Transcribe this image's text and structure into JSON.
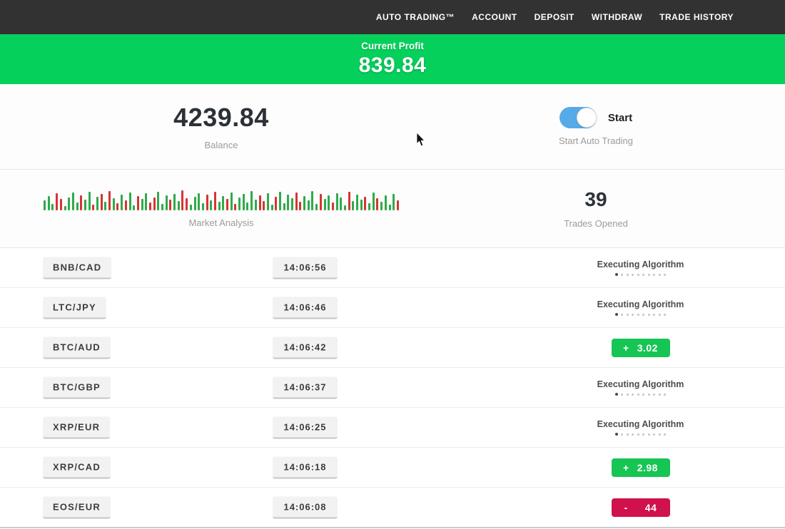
{
  "nav": {
    "items": [
      "AUTO TRADING™",
      "ACCOUNT",
      "DEPOSIT",
      "WITHDRAW",
      "TRADE HISTORY"
    ]
  },
  "profit_banner": {
    "label": "Current Profit",
    "value": "839.84"
  },
  "stats": {
    "balance": {
      "value": "4239.84",
      "label": "Balance"
    },
    "auto_trading": {
      "toggle_label": "Start",
      "label": "Start Auto Trading",
      "state": "on"
    },
    "market_analysis": {
      "label": "Market Analysis"
    },
    "trades_opened": {
      "value": "39",
      "label": "Trades Opened"
    }
  },
  "chart_data": {
    "type": "bar",
    "title": "Market Analysis",
    "note": "decorative green/red tick bars, heights in px, c: g=green r=red",
    "bars": [
      [
        14,
        "g"
      ],
      [
        20,
        "g"
      ],
      [
        9,
        "g"
      ],
      [
        24,
        "r"
      ],
      [
        16,
        "r"
      ],
      [
        6,
        "g"
      ],
      [
        18,
        "g"
      ],
      [
        25,
        "g"
      ],
      [
        11,
        "g"
      ],
      [
        21,
        "r"
      ],
      [
        15,
        "g"
      ],
      [
        26,
        "g"
      ],
      [
        8,
        "r"
      ],
      [
        19,
        "g"
      ],
      [
        23,
        "r"
      ],
      [
        12,
        "g"
      ],
      [
        27,
        "r"
      ],
      [
        17,
        "g"
      ],
      [
        10,
        "r"
      ],
      [
        22,
        "g"
      ],
      [
        14,
        "r"
      ],
      [
        25,
        "g"
      ],
      [
        7,
        "g"
      ],
      [
        20,
        "r"
      ],
      [
        16,
        "g"
      ],
      [
        24,
        "g"
      ],
      [
        11,
        "r"
      ],
      [
        18,
        "r"
      ],
      [
        26,
        "g"
      ],
      [
        9,
        "g"
      ],
      [
        21,
        "g"
      ],
      [
        15,
        "r"
      ],
      [
        23,
        "g"
      ],
      [
        13,
        "g"
      ],
      [
        28,
        "r"
      ],
      [
        17,
        "r"
      ],
      [
        8,
        "g"
      ],
      [
        19,
        "g"
      ],
      [
        24,
        "g"
      ],
      [
        10,
        "g"
      ],
      [
        22,
        "r"
      ],
      [
        14,
        "g"
      ],
      [
        26,
        "r"
      ],
      [
        12,
        "g"
      ],
      [
        20,
        "g"
      ],
      [
        16,
        "r"
      ],
      [
        25,
        "g"
      ],
      [
        9,
        "r"
      ],
      [
        18,
        "g"
      ],
      [
        23,
        "g"
      ],
      [
        11,
        "g"
      ],
      [
        27,
        "g"
      ],
      [
        15,
        "g"
      ],
      [
        21,
        "r"
      ],
      [
        13,
        "r"
      ],
      [
        24,
        "g"
      ],
      [
        8,
        "g"
      ],
      [
        19,
        "r"
      ],
      [
        26,
        "g"
      ],
      [
        10,
        "g"
      ],
      [
        22,
        "g"
      ],
      [
        17,
        "g"
      ],
      [
        25,
        "r"
      ],
      [
        12,
        "r"
      ],
      [
        20,
        "g"
      ],
      [
        14,
        "g"
      ],
      [
        27,
        "g"
      ],
      [
        9,
        "g"
      ],
      [
        23,
        "r"
      ],
      [
        16,
        "g"
      ],
      [
        21,
        "g"
      ],
      [
        11,
        "r"
      ],
      [
        24,
        "g"
      ],
      [
        18,
        "g"
      ],
      [
        7,
        "g"
      ],
      [
        26,
        "r"
      ],
      [
        13,
        "g"
      ],
      [
        22,
        "g"
      ],
      [
        15,
        "g"
      ],
      [
        19,
        "r"
      ],
      [
        10,
        "g"
      ],
      [
        25,
        "g"
      ],
      [
        17,
        "r"
      ],
      [
        12,
        "g"
      ],
      [
        21,
        "g"
      ],
      [
        8,
        "g"
      ],
      [
        23,
        "g"
      ],
      [
        14,
        "r"
      ]
    ],
    "colors": {
      "green": "#2faa4a",
      "red": "#d63434"
    }
  },
  "trades": [
    {
      "pair": "BNB/CAD",
      "time": "14:06:56",
      "status": "executing",
      "status_label": "Executing Algorithm"
    },
    {
      "pair": "LTC/JPY",
      "time": "14:06:46",
      "status": "executing",
      "status_label": "Executing Algorithm"
    },
    {
      "pair": "BTC/AUD",
      "time": "14:06:42",
      "status": "profit",
      "sign": "+",
      "amount": "3.02"
    },
    {
      "pair": "BTC/GBP",
      "time": "14:06:37",
      "status": "executing",
      "status_label": "Executing Algorithm"
    },
    {
      "pair": "XRP/EUR",
      "time": "14:06:25",
      "status": "executing",
      "status_label": "Executing Algorithm"
    },
    {
      "pair": "XRP/CAD",
      "time": "14:06:18",
      "status": "profit",
      "sign": "+",
      "amount": "2.98"
    },
    {
      "pair": "EOS/EUR",
      "time": "14:06:08",
      "status": "loss",
      "sign": "-",
      "amount": "44"
    }
  ],
  "ui_colors": {
    "nav_bg": "#323232",
    "banner_green": "#06d05c",
    "badge_green": "#16c553",
    "badge_red": "#d0114b",
    "toggle_blue": "#57aae8"
  }
}
